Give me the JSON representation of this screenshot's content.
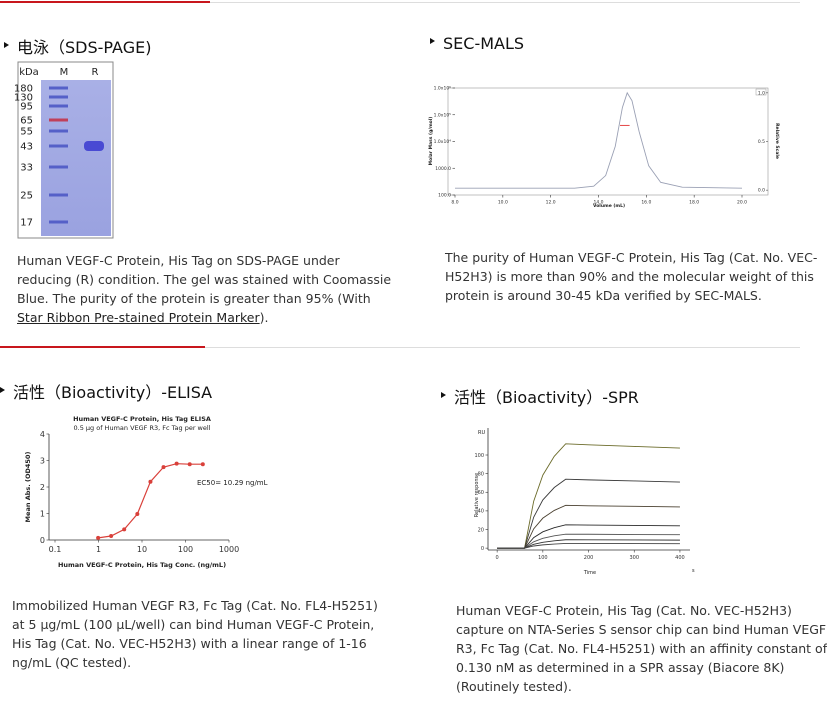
{
  "panels": [
    {
      "title": "电泳（SDS-PAGE)",
      "gel": {
        "header": [
          "kDa",
          "M",
          "R"
        ],
        "markers": [
          "180",
          "130",
          "95",
          "65",
          "55",
          "43",
          "33",
          "25",
          "17"
        ]
      },
      "caption_lines": [
        "Human VEGF-C Protein, His Tag on SDS-PAGE under",
        "reducing (R) condition. The gel was stained with Coomassie",
        "Blue. The purity of the protein is greater than 95% (With"
      ],
      "link": "Star Ribbon Pre-stained Protein Marker",
      "link_suffix": ")."
    },
    {
      "title": "SEC-MALS",
      "chart": {
        "type": "line",
        "xlabel": "Volume (mL)",
        "ylabel": "Molar Mass (g/mol)",
        "y2label": "Relative Scale",
        "xlim": [
          8,
          20
        ],
        "xticks": [
          {
            "value": 8,
            "label": "8.0"
          },
          {
            "value": 10,
            "label": "10.0"
          },
          {
            "value": 12,
            "label": "12.0"
          },
          {
            "value": 14,
            "label": "14.0"
          },
          {
            "value": 16,
            "label": "16.0"
          },
          {
            "value": 18,
            "label": "18.0"
          },
          {
            "value": 20,
            "label": "20.0"
          }
        ],
        "ylim": [
          100,
          1000000
        ],
        "yscale": "log",
        "yticks": [
          {
            "value": 100,
            "label": "100.0"
          },
          {
            "value": 1000,
            "label": "1000.0"
          },
          {
            "value": 10000,
            "label": "1.0x10⁴"
          },
          {
            "value": 100000,
            "label": "1.0x10⁵"
          },
          {
            "value": 1000000,
            "label": "1.0x10⁶"
          }
        ],
        "y2lim": [
          -0.05,
          1.05
        ],
        "y2ticks": [
          {
            "value": 0,
            "label": "0.0"
          },
          {
            "value": 0.5,
            "label": "0.5"
          },
          {
            "value": 1,
            "label": "1.0"
          }
        ],
        "series": [
          {
            "color": "#9aa0b4",
            "axis": "y2",
            "x": [
              8,
              13,
              13.8,
              14.3,
              14.7,
              15.0,
              15.2,
              15.4,
              15.7,
              16.1,
              16.6,
              17.5,
              20
            ],
            "values": [
              0.02,
              0.02,
              0.04,
              0.15,
              0.45,
              0.85,
              1.0,
              0.92,
              0.6,
              0.25,
              0.08,
              0.03,
              0.02
            ]
          },
          {
            "color": "#e03030",
            "x": [
              14.9,
              15.3
            ],
            "values": [
              40000,
              40000
            ]
          }
        ]
      },
      "caption_lines": [
        "The purity of Human VEGF-C Protein, His Tag (Cat. No. VEC-",
        "H52H3) is more than 90% and the molecular weight of this",
        "protein is around 30-45 kDa verified by SEC-MALS."
      ]
    },
    {
      "title": "活性（Bioactivity）-ELISA",
      "chart": {
        "type": "scatter",
        "title": "Human VEGF-C Protein, His Tag ELISA",
        "subtitle": "0.5 μg of Human VEGF R3, Fc Tag per well",
        "xlabel": "Human VEGF-C Protein, His Tag Conc. (ng/mL)",
        "ylabel": "Mean Abs. (OD450)",
        "annotation": "EC50= 10.29 ng/mL",
        "xscale": "log",
        "xlim": [
          0.1,
          1000
        ],
        "xticks": [
          0.1,
          1,
          10,
          100,
          1000
        ],
        "ylim": [
          0,
          4
        ],
        "yticks": [
          0,
          1,
          2,
          3,
          4
        ],
        "series": [
          {
            "color": "#d9403a",
            "markers": true,
            "x": [
              0.98,
              1.95,
              3.9,
              7.81,
              15.63,
              31.25,
              62.5,
              125,
              250
            ],
            "values": [
              0.08,
              0.15,
              0.4,
              0.98,
              2.2,
              2.75,
              2.88,
              2.86,
              2.86
            ]
          }
        ]
      },
      "caption_lines": [
        "Immobilized Human VEGF R3, Fc Tag (Cat. No. FL4-H5251)",
        "at 5 μg/mL (100 μL/well) can bind Human VEGF-C Protein,",
        "His Tag (Cat. No. VEC-H52H3) with a linear range of 1-16",
        "ng/mL (QC tested)."
      ]
    },
    {
      "title": "活性（Bioactivity）-SPR",
      "chart": {
        "type": "line",
        "xlabel": "Time",
        "xunit": "s",
        "ylabel": "Relative response",
        "yunit": "RU",
        "xlim": [
          -20,
          422
        ],
        "xticks": [
          0,
          100,
          200,
          300,
          400
        ],
        "ylim": [
          -2,
          129
        ],
        "yticks": [
          0,
          20,
          40,
          60,
          80,
          100
        ],
        "series": [
          {
            "color": "#6b6b2a",
            "x": [
              0,
              60,
              80,
              100,
              125,
              150,
              200,
              300,
              400
            ],
            "values": [
              0,
              0,
              50.4,
              78.4,
              98.6,
              112,
              110.9,
              109.2,
              107.5
            ]
          },
          {
            "color": "#3a3a3a",
            "x": [
              0,
              60,
              80,
              100,
              125,
              150,
              200,
              300,
              400
            ],
            "values": [
              0,
              0,
              33.3,
              51.8,
              65.1,
              74,
              73.3,
              72.2,
              71
            ]
          },
          {
            "color": "#4a4030",
            "x": [
              0,
              60,
              80,
              100,
              125,
              150,
              200,
              300,
              400
            ],
            "values": [
              0,
              0,
              20.7,
              32.2,
              40.5,
              46,
              45.5,
              44.9,
              44.2
            ]
          },
          {
            "color": "#2a2a2a",
            "x": [
              0,
              60,
              80,
              100,
              125,
              150,
              200,
              300,
              400
            ],
            "values": [
              0,
              0,
              11.3,
              17.5,
              22,
              25,
              24.8,
              24.4,
              24
            ]
          },
          {
            "color": "#555555",
            "x": [
              0,
              60,
              80,
              100,
              125,
              150,
              200,
              300,
              400
            ],
            "values": [
              0,
              0,
              6.8,
              10.5,
              13.2,
              15,
              14.9,
              14.6,
              14.4
            ]
          },
          {
            "color": "#333333",
            "x": [
              0,
              60,
              80,
              100,
              125,
              150,
              200,
              300,
              400
            ],
            "values": [
              0,
              0,
              4.1,
              6.3,
              7.9,
              9,
              8.9,
              8.8,
              8.6
            ]
          },
          {
            "color": "#444444",
            "x": [
              0,
              60,
              80,
              100,
              125,
              150,
              200,
              300,
              400
            ],
            "values": [
              0,
              0,
              2.3,
              3.5,
              4.4,
              5,
              5,
              4.9,
              4.8
            ]
          }
        ]
      },
      "caption_lines": [
        "Human VEGF-C Protein, His Tag (Cat. No. VEC-H52H3)",
        "capture on NTA-Series S sensor chip can bind  Human VEGF",
        "R3, Fc Tag (Cat. No. FL4-H5251) with an affinity constant of",
        "0.130 nM as determined in a SPR assay (Biacore 8K)",
        "(Routinely tested)."
      ]
    }
  ]
}
